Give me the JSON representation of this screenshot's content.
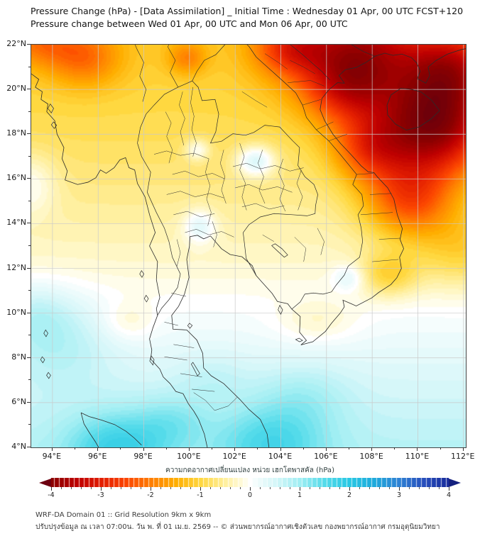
{
  "header": {
    "title": "Pressure Change (hPa) - [Data Assimilation] _ Initial Time : Wednesday 01 Apr, 00 UTC FCST+120",
    "subtitle": "Pressure change between Wed 01 Apr, 00 UTC and Mon 06 Apr, 00 UTC"
  },
  "map": {
    "lon_range": [
      93.07,
      112.1
    ],
    "lat_range": [
      4,
      22
    ],
    "lat_ticks": [
      [
        22,
        "22°N"
      ],
      [
        20,
        "20°N"
      ],
      [
        18,
        "18°N"
      ],
      [
        16,
        "16°N"
      ],
      [
        14,
        "14°N"
      ],
      [
        12,
        "12°N"
      ],
      [
        10,
        "10°N"
      ],
      [
        8,
        "8°N"
      ],
      [
        6,
        "6°N"
      ],
      [
        4,
        "4°N"
      ]
    ],
    "lon_ticks": [
      [
        94,
        "94°E"
      ],
      [
        96,
        "96°E"
      ],
      [
        98,
        "98°E"
      ],
      [
        100,
        "100°E"
      ],
      [
        102,
        "102°E"
      ],
      [
        104,
        "104°E"
      ],
      [
        106,
        "106°E"
      ],
      [
        108,
        "108°E"
      ],
      [
        110,
        "110°E"
      ],
      [
        112,
        "112°E"
      ]
    ],
    "grid_step_deg": 2
  },
  "chart_data": {
    "type": "heatmap",
    "title": "Pressure change (hPa) between Wed 01 Apr 00 UTC and Mon 06 Apr 00 UTC",
    "units": "hPa",
    "lon_range": [
      93.07,
      112.1
    ],
    "lat_range": [
      4,
      22
    ],
    "value_range": [
      -4,
      4
    ],
    "contour_interval": 0.1,
    "base_by_latitude": [
      [
        4,
        0.78
      ],
      [
        5,
        0.68
      ],
      [
        7,
        0.45
      ],
      [
        9,
        0.17
      ],
      [
        10.5,
        0
      ],
      [
        12,
        -0.22
      ],
      [
        14,
        -0.45
      ],
      [
        16,
        -0.68
      ],
      [
        18,
        -0.88
      ],
      [
        20,
        -1.02
      ],
      [
        22,
        -1.15
      ]
    ],
    "anomaly_blobs": [
      [
        110.6,
        18.3,
        2.7,
        2.3,
        -3.1
      ],
      [
        107.3,
        21.6,
        3.0,
        2.2,
        -2.5
      ],
      [
        106.8,
        19.8,
        1.8,
        1.5,
        -1.0
      ],
      [
        111.6,
        21.0,
        2.0,
        1.8,
        -1.8
      ],
      [
        109.6,
        15.0,
        2.0,
        1.7,
        -1.7
      ],
      [
        107.8,
        17.3,
        1.6,
        1.4,
        -1.2
      ],
      [
        108.7,
        11.7,
        1.3,
        1.0,
        -0.85
      ],
      [
        104.3,
        21.8,
        1.5,
        1.1,
        -1.1
      ],
      [
        95.4,
        21.4,
        1.6,
        1.3,
        -1.05
      ],
      [
        99.9,
        21.4,
        0.85,
        0.75,
        -0.85
      ],
      [
        93.4,
        22.1,
        1.6,
        1.1,
        -0.9
      ],
      [
        112.0,
        12.8,
        2.2,
        1.7,
        -0.75
      ],
      [
        97.3,
        9.6,
        1.2,
        0.9,
        -0.35
      ],
      [
        105.6,
        9.6,
        1.8,
        1.0,
        -0.35
      ],
      [
        96.9,
        4.0,
        2.2,
        1.6,
        1.05
      ],
      [
        103.6,
        4.2,
        2.4,
        1.7,
        0.9
      ],
      [
        94.3,
        8.8,
        2.4,
        2.0,
        0.55
      ],
      [
        93.2,
        10.0,
        1.6,
        1.4,
        0.45
      ],
      [
        93.0,
        15.8,
        1.2,
        1.4,
        0.6
      ],
      [
        101.0,
        7.2,
        1.6,
        1.2,
        0.25
      ],
      [
        102.9,
        16.8,
        0.85,
        0.7,
        1.15
      ],
      [
        100.45,
        13.9,
        0.7,
        0.75,
        0.75
      ],
      [
        100.35,
        17.3,
        0.55,
        0.5,
        0.75
      ],
      [
        107.0,
        11.6,
        0.7,
        0.6,
        0.55
      ],
      [
        99.3,
        5.2,
        1.6,
        1.2,
        0.45
      ],
      [
        105.0,
        6.3,
        2.0,
        1.4,
        0.4
      ]
    ]
  },
  "colorbar": {
    "label": "ความกดอากาศเปลี่ยนแปลง หน่วย เฮกโตพาสคัล (hPa)",
    "min": -4,
    "max": 4,
    "segment_step": 0.1,
    "minor_tick_step": 0.2,
    "ticks": [
      [
        -4,
        "-4"
      ],
      [
        -3,
        "-3"
      ],
      [
        -2,
        "-2"
      ],
      [
        -1,
        "-1"
      ],
      [
        0,
        "0"
      ],
      [
        1,
        "1"
      ],
      [
        2,
        "2"
      ],
      [
        3,
        "3"
      ],
      [
        4,
        "4"
      ]
    ],
    "stops": [
      [
        -4.5,
        "#67000d"
      ],
      [
        -4.0,
        "#8b0000"
      ],
      [
        -3.5,
        "#bd0000"
      ],
      [
        -3.0,
        "#e31e00"
      ],
      [
        -2.5,
        "#fc4600"
      ],
      [
        -2.0,
        "#ff7e00"
      ],
      [
        -1.5,
        "#ffae00"
      ],
      [
        -1.0,
        "#ffd840"
      ],
      [
        -0.5,
        "#fff0a0"
      ],
      [
        -0.15,
        "#fffce1"
      ],
      [
        0.0,
        "#ffffff"
      ],
      [
        0.15,
        "#f0fcfc"
      ],
      [
        0.5,
        "#d6f7f9"
      ],
      [
        1.0,
        "#a0eef3"
      ],
      [
        1.5,
        "#54dbea"
      ],
      [
        2.0,
        "#28c8e4"
      ],
      [
        2.5,
        "#1eaadc"
      ],
      [
        3.0,
        "#2d82d4"
      ],
      [
        3.5,
        "#264ebc"
      ],
      [
        4.0,
        "#182c9c"
      ],
      [
        4.5,
        "#101a78"
      ]
    ]
  },
  "footer": {
    "line1": "WRF-DA Domain 01 :: Grid Resolution 9km x 9km",
    "line2": "ปรับปรุงข้อมูล ณ เวลา 07:00น. วัน พ. ที่ 01 เม.ย. 2569 -- © ส่วนพยากรณ์อากาศเชิงตัวเลข กองพยากรณ์อากาศ กรมอุตุนิยมวิทยา"
  }
}
